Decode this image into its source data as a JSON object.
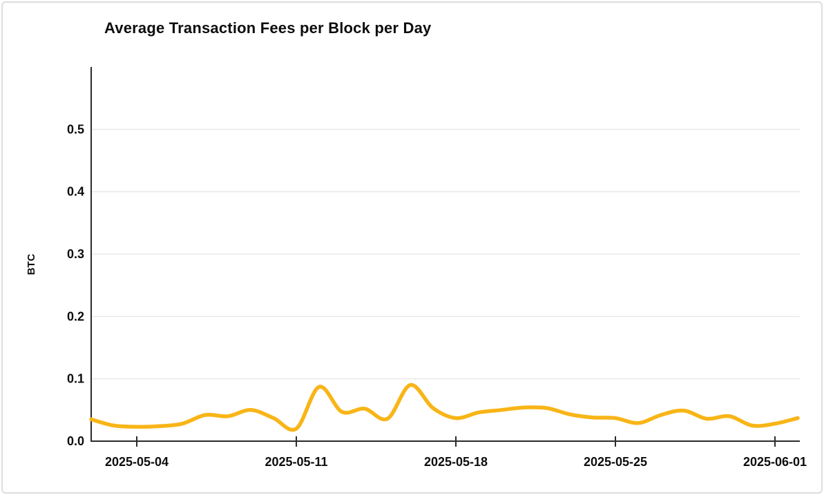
{
  "chart_data": {
    "type": "line",
    "title": "Average Transaction Fees per Block per Day",
    "xlabel": "",
    "ylabel": "BTC",
    "legend": "none",
    "grid": "horizontal",
    "line_color": "#F8B517",
    "axis_color": "#2b2b2b",
    "grid_color": "#e8e8e8",
    "ylim": [
      0,
      0.6
    ],
    "y_tick_labels": [
      "0.0",
      "0.1",
      "0.2",
      "0.3",
      "0.4",
      "0.5"
    ],
    "x_tick_labels": [
      "2025-05-04",
      "2025-05-11",
      "2025-05-18",
      "2025-05-25",
      "2025-06-01"
    ],
    "x": [
      "2025-05-02",
      "2025-05-03",
      "2025-05-04",
      "2025-05-05",
      "2025-05-06",
      "2025-05-07",
      "2025-05-08",
      "2025-05-09",
      "2025-05-10",
      "2025-05-11",
      "2025-05-12",
      "2025-05-13",
      "2025-05-14",
      "2025-05-15",
      "2025-05-16",
      "2025-05-17",
      "2025-05-18",
      "2025-05-19",
      "2025-05-20",
      "2025-05-21",
      "2025-05-22",
      "2025-05-23",
      "2025-05-24",
      "2025-05-25",
      "2025-05-26",
      "2025-05-27",
      "2025-05-28",
      "2025-05-29",
      "2025-05-30",
      "2025-05-31",
      "2025-06-01",
      "2025-06-02"
    ],
    "y": [
      0.035,
      0.025,
      0.023,
      0.024,
      0.028,
      0.042,
      0.04,
      0.05,
      0.037,
      0.02,
      0.087,
      0.047,
      0.052,
      0.036,
      0.09,
      0.053,
      0.037,
      0.046,
      0.05,
      0.054,
      0.053,
      0.043,
      0.038,
      0.037,
      0.029,
      0.042,
      0.049,
      0.036,
      0.04,
      0.025,
      0.028,
      0.037
    ]
  }
}
